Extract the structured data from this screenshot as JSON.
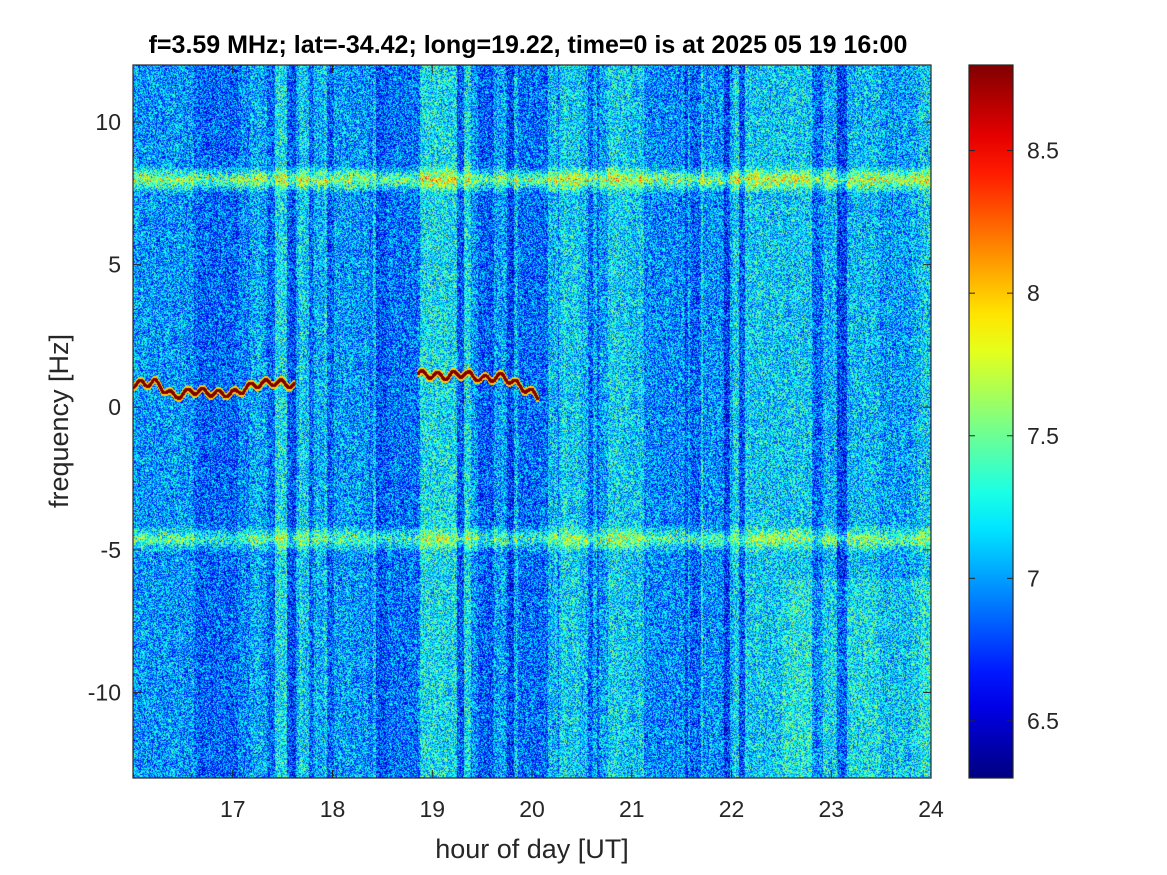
{
  "chart_data": {
    "type": "heatmap",
    "title": "f=3.59 MHz;  lat=-34.42; long=19.22, time=0 is at 2025 05 19 16:00",
    "xlabel": "hour of day [UT]",
    "ylabel": "frequency [Hz]",
    "xlim": [
      16,
      24
    ],
    "ylim": [
      -13,
      12
    ],
    "x_ticks": [
      17,
      18,
      19,
      20,
      21,
      22,
      23,
      24
    ],
    "x_tick_labels": [
      "17",
      "18",
      "19",
      "20",
      "21",
      "22",
      "23",
      "24"
    ],
    "y_ticks": [
      10,
      5,
      0,
      -5,
      -10
    ],
    "y_tick_labels": [
      "10",
      "5",
      "0",
      "-5",
      "-10"
    ],
    "colorbar": {
      "colormap": "jet",
      "clim": [
        6.3,
        8.8
      ],
      "ticks": [
        8.5,
        8,
        7.5,
        7,
        6.5
      ],
      "tick_labels": [
        "8.5",
        "8",
        "7.5",
        "7",
        "6.5"
      ]
    },
    "background_level": 7.0,
    "features": [
      {
        "name": "",
        "kind": "horizontal_band",
        "freq_hz": 8.0,
        "x_range": [
          16,
          24
        ],
        "level": 7.8
      },
      {
        "name": "",
        "kind": "horizontal_band",
        "freq_hz": -4.6,
        "x_range": [
          16,
          24
        ],
        "level": 7.6
      },
      {
        "name": "",
        "kind": "trace",
        "x": [
          16.0,
          16.2,
          16.4,
          16.6,
          16.8,
          17.0,
          17.2,
          17.4,
          17.6
        ],
        "y": [
          0.8,
          0.9,
          0.4,
          0.6,
          0.5,
          0.5,
          0.8,
          0.9,
          0.8
        ],
        "level": 8.8
      },
      {
        "name": "",
        "kind": "trace",
        "x": [
          18.85,
          19.1,
          19.3,
          19.5,
          19.7,
          19.9,
          20.05
        ],
        "y": [
          1.2,
          1.1,
          1.2,
          1.0,
          1.1,
          0.7,
          0.4
        ],
        "level": 8.8
      }
    ],
    "colors": {
      "axis": "#262626",
      "background": "#ffffff"
    }
  }
}
